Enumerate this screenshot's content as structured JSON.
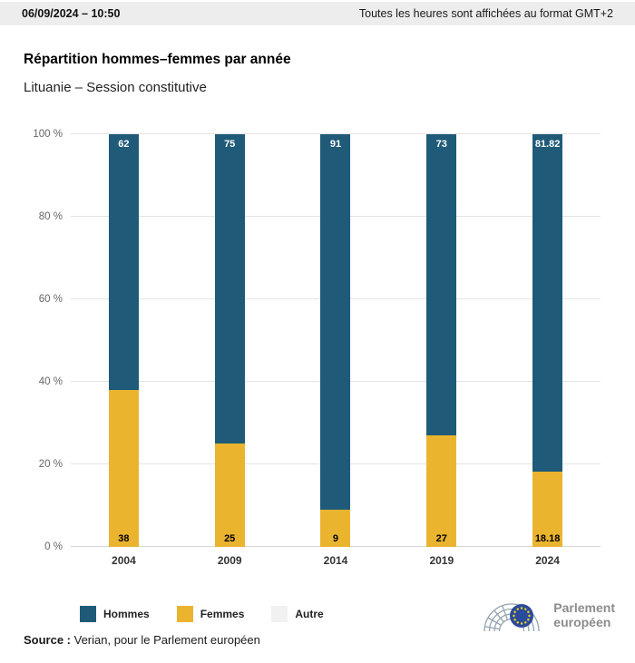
{
  "header": {
    "datetime": "06/09/2024 – 10:50",
    "timezone_note": "Toutes les heures sont affichées au format GMT+2"
  },
  "page": {
    "title": "Répartition hommes–femmes par année",
    "subtitle": "Lituanie – Session constitutive"
  },
  "chart_data": {
    "type": "bar",
    "stacked": true,
    "title": "Répartition hommes–femmes par année",
    "subtitle": "Lituanie – Session constitutive",
    "categories": [
      "2004",
      "2009",
      "2014",
      "2019",
      "2024"
    ],
    "series": [
      {
        "name": "Hommes",
        "color": "#1f5b78",
        "values": [
          62,
          75,
          91,
          73,
          81.82
        ],
        "data_labels": [
          "62",
          "75",
          "91",
          "73",
          "81.82"
        ]
      },
      {
        "name": "Femmes",
        "color": "#eab42f",
        "values": [
          38,
          25,
          9,
          27,
          18.18
        ],
        "data_labels": [
          "38",
          "25",
          "9",
          "27",
          "18.18"
        ]
      },
      {
        "name": "Autre",
        "color": "#f1f1f1",
        "values": [
          0,
          0,
          0,
          0,
          0
        ],
        "data_labels": [
          "",
          "",
          "",
          "",
          ""
        ]
      }
    ],
    "ylim": [
      0,
      100
    ],
    "yticks": [
      {
        "value": 0,
        "label": "0 %"
      },
      {
        "value": 20,
        "label": "20 %"
      },
      {
        "value": 40,
        "label": "40 %"
      },
      {
        "value": 60,
        "label": "60 %"
      },
      {
        "value": 80,
        "label": "80 %"
      },
      {
        "value": 100,
        "label": "100 %"
      }
    ],
    "grid": true,
    "legend_position": "bottom"
  },
  "legend": {
    "items": [
      {
        "label": "Hommes",
        "color": "#1f5b78"
      },
      {
        "label": "Femmes",
        "color": "#eab42f"
      },
      {
        "label": "Autre",
        "color": "#f1f1f1"
      }
    ]
  },
  "source": {
    "label": "Source :",
    "text": " Verian, pour le Parlement européen"
  },
  "logo": {
    "line1": "Parlement",
    "line2": "européen",
    "flag_color": "#2a4b9b",
    "star_color": "#ffd617"
  }
}
